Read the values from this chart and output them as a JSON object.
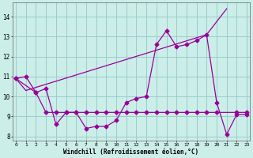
{
  "line1_x": [
    0,
    1,
    2,
    3,
    4,
    5,
    6,
    7,
    8,
    9,
    10,
    11,
    12,
    13,
    14,
    15,
    16,
    17,
    18,
    19,
    20,
    21,
    22,
    23
  ],
  "line1_y": [
    10.9,
    11.0,
    10.2,
    10.4,
    8.6,
    9.2,
    9.2,
    8.4,
    8.5,
    8.5,
    8.8,
    9.7,
    9.9,
    10.0,
    12.6,
    13.3,
    12.5,
    12.6,
    12.8,
    13.1,
    9.7,
    8.1,
    9.1,
    9.1
  ],
  "line2_x": [
    0,
    2,
    3,
    4,
    5,
    6,
    7,
    8,
    9,
    10,
    11,
    12,
    13,
    14,
    15,
    16,
    17,
    18,
    19,
    20,
    22,
    23
  ],
  "line2_y": [
    10.9,
    10.2,
    9.2,
    9.2,
    9.2,
    9.2,
    9.2,
    9.2,
    9.2,
    9.2,
    9.2,
    9.2,
    9.2,
    9.2,
    9.2,
    9.2,
    9.2,
    9.2,
    9.2,
    9.2,
    9.2,
    9.2
  ],
  "line3_x": [
    0,
    1,
    19,
    21
  ],
  "line3_y": [
    10.9,
    10.3,
    13.1,
    14.4
  ],
  "line_color": "#990099",
  "bg_color": "#cceee8",
  "grid_color": "#99cccc",
  "ylabel_ticks": [
    8,
    9,
    10,
    11,
    12,
    13,
    14
  ],
  "xlabel_ticks": [
    0,
    1,
    2,
    3,
    4,
    5,
    6,
    7,
    8,
    9,
    10,
    11,
    12,
    13,
    14,
    15,
    16,
    17,
    18,
    19,
    20,
    21,
    22,
    23
  ],
  "xlabel": "Windchill (Refroidissement éolien,°C)",
  "ylim": [
    7.8,
    14.7
  ],
  "xlim": [
    -0.3,
    23.3
  ]
}
